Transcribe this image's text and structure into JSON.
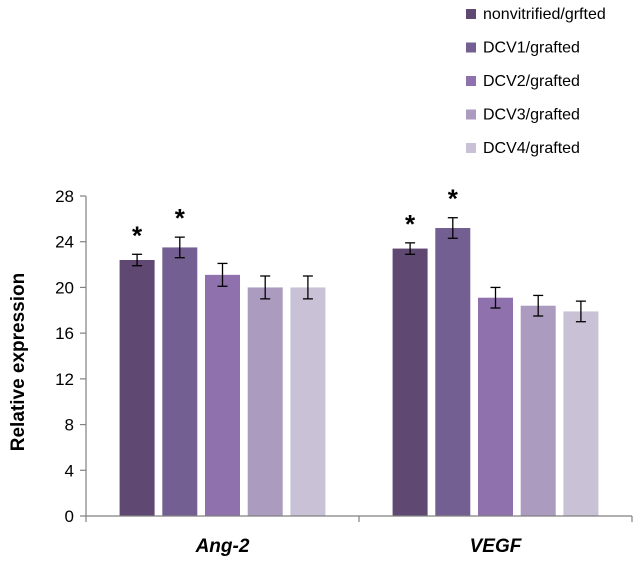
{
  "chart_data": {
    "type": "bar",
    "title": "",
    "xlabel": "",
    "ylabel": "Relative expression",
    "ylim": [
      0,
      28
    ],
    "yticks": [
      0,
      4,
      8,
      12,
      16,
      20,
      24,
      28
    ],
    "grid": false,
    "legend_position": "top-right",
    "categories": [
      "Ang-2",
      "VEGF"
    ],
    "series": [
      {
        "name": "nonvitrified/grfted",
        "color": "#5f4872",
        "values": [
          22.4,
          23.4
        ],
        "errors": [
          0.5,
          0.5
        ],
        "significance": [
          "*",
          "*"
        ]
      },
      {
        "name": "DCV1/grafted",
        "color": "#735f91",
        "values": [
          23.5,
          25.2
        ],
        "errors": [
          0.9,
          0.9
        ],
        "significance": [
          "*",
          "*"
        ]
      },
      {
        "name": "DCV2/grafted",
        "color": "#8e71ad",
        "values": [
          21.1,
          19.1
        ],
        "errors": [
          1.0,
          0.9
        ],
        "significance": [
          "",
          ""
        ]
      },
      {
        "name": "DCV3/grafted",
        "color": "#aa9bbf",
        "values": [
          20.0,
          18.4
        ],
        "errors": [
          1.0,
          0.9
        ],
        "significance": [
          "",
          ""
        ]
      },
      {
        "name": "DCV4/grafted",
        "color": "#c9c1d6",
        "values": [
          20.0,
          17.9
        ],
        "errors": [
          1.0,
          0.9
        ],
        "significance": [
          "",
          ""
        ]
      }
    ]
  }
}
